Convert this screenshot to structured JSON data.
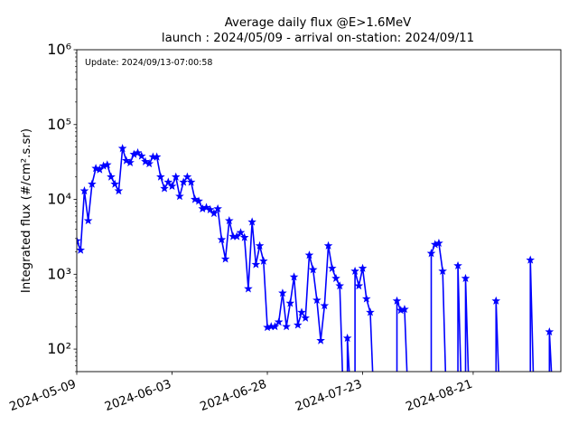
{
  "chart_data": {
    "type": "line",
    "title_line1": "Average daily flux @E>1.6MeV",
    "title_line2": "launch : 2024/05/09 - arrival on-station: 2024/09/11",
    "annotation": "Update: 2024/09/13-07:00:58",
    "xlabel": "",
    "ylabel": "Integrated flux (#/cm².s.sr)",
    "y_scale": "log",
    "ylim": [
      50,
      1000000
    ],
    "xlim": [
      "2024-05-09",
      "2024-09-13"
    ],
    "x_tick_labels": [
      "2024-05-09",
      "2024-06-03",
      "2024-06-28",
      "2024-07-23",
      "2024-08-21"
    ],
    "y_tick_labels": [
      "10²",
      "10³",
      "10⁴",
      "10⁵",
      "10⁶"
    ],
    "y_tick_values": [
      100,
      1000,
      10000,
      100000,
      1000000
    ],
    "grid": false,
    "legend": "none",
    "series": [
      {
        "color": "#0000ff",
        "marker": "star",
        "x": [
          "2024-05-09",
          "2024-05-10",
          "2024-05-11",
          "2024-05-12",
          "2024-05-13",
          "2024-05-14",
          "2024-05-15",
          "2024-05-16",
          "2024-05-17",
          "2024-05-18",
          "2024-05-19",
          "2024-05-20",
          "2024-05-21",
          "2024-05-22",
          "2024-05-23",
          "2024-05-24",
          "2024-05-25",
          "2024-05-26",
          "2024-05-27",
          "2024-05-28",
          "2024-05-29",
          "2024-05-30",
          "2024-05-31",
          "2024-06-01",
          "2024-06-02",
          "2024-06-03",
          "2024-06-04",
          "2024-06-05",
          "2024-06-06",
          "2024-06-07",
          "2024-06-08",
          "2024-06-09",
          "2024-06-10",
          "2024-06-11",
          "2024-06-12",
          "2024-06-13",
          "2024-06-14",
          "2024-06-15",
          "2024-06-16",
          "2024-06-17",
          "2024-06-18",
          "2024-06-19",
          "2024-06-20",
          "2024-06-21",
          "2024-06-22",
          "2024-06-23",
          "2024-06-24",
          "2024-06-25",
          "2024-06-26",
          "2024-06-27",
          "2024-06-28",
          "2024-06-29",
          "2024-06-30",
          "2024-07-01",
          "2024-07-02",
          "2024-07-03",
          "2024-07-04",
          "2024-07-05",
          "2024-07-06",
          "2024-07-07",
          "2024-07-08",
          "2024-07-09",
          "2024-07-10",
          "2024-07-11",
          "2024-07-12",
          "2024-07-13",
          "2024-07-14",
          "2024-07-15",
          "2024-07-16",
          "2024-07-17",
          "2024-07-18",
          "2024-07-19",
          "2024-07-20",
          "2024-07-21",
          "2024-07-22",
          "2024-07-23",
          "2024-07-24",
          "2024-07-25",
          "2024-07-26",
          "2024-07-27",
          "2024-07-28",
          "2024-07-29",
          "2024-07-30",
          "2024-07-31",
          "2024-08-01",
          "2024-08-02",
          "2024-08-03",
          "2024-08-04",
          "2024-08-05",
          "2024-08-06",
          "2024-08-07",
          "2024-08-08",
          "2024-08-09",
          "2024-08-10",
          "2024-08-11",
          "2024-08-12",
          "2024-08-13",
          "2024-08-14",
          "2024-08-15",
          "2024-08-16",
          "2024-08-17",
          "2024-08-18",
          "2024-08-19",
          "2024-08-20",
          "2024-08-21",
          "2024-08-22",
          "2024-08-23",
          "2024-08-24",
          "2024-08-25",
          "2024-08-26",
          "2024-08-27",
          "2024-08-28",
          "2024-08-29",
          "2024-08-30",
          "2024-08-31",
          "2024-09-01",
          "2024-09-02",
          "2024-09-03",
          "2024-09-04",
          "2024-09-05",
          "2024-09-06",
          "2024-09-07",
          "2024-09-08",
          "2024-09-09",
          "2024-09-10",
          "2024-09-11",
          "2024-09-12"
        ],
        "y": [
          2800,
          2100,
          13000,
          5200,
          16000,
          26000,
          25000,
          28000,
          29000,
          20000,
          16000,
          13000,
          48000,
          33000,
          31000,
          40000,
          42000,
          38000,
          32000,
          30000,
          37000,
          37000,
          20000,
          14000,
          17000,
          15000,
          20000,
          11000,
          17000,
          20000,
          17000,
          10000,
          9500,
          7500,
          7800,
          7300,
          6500,
          7500,
          2900,
          1600,
          5200,
          3200,
          3200,
          3600,
          3100,
          640,
          5000,
          1350,
          2400,
          1500,
          195,
          200,
          200,
          230,
          560,
          200,
          410,
          920,
          210,
          310,
          260,
          1800,
          1150,
          450,
          130,
          380,
          2400,
          1200,
          880,
          700,
          null,
          140,
          null,
          1100,
          700,
          1200,
          470,
          310,
          null,
          null,
          null,
          null,
          null,
          null,
          440,
          330,
          340,
          null,
          null,
          null,
          null,
          null,
          null,
          1900,
          2500,
          2600,
          1100,
          null,
          null,
          null,
          1300,
          null,
          880,
          null,
          null,
          null,
          null,
          null,
          null,
          null,
          440,
          null,
          null,
          null,
          null,
          null,
          null,
          null,
          null,
          1550,
          null,
          null,
          null,
          null,
          170,
          null,
          null
        ]
      }
    ]
  }
}
